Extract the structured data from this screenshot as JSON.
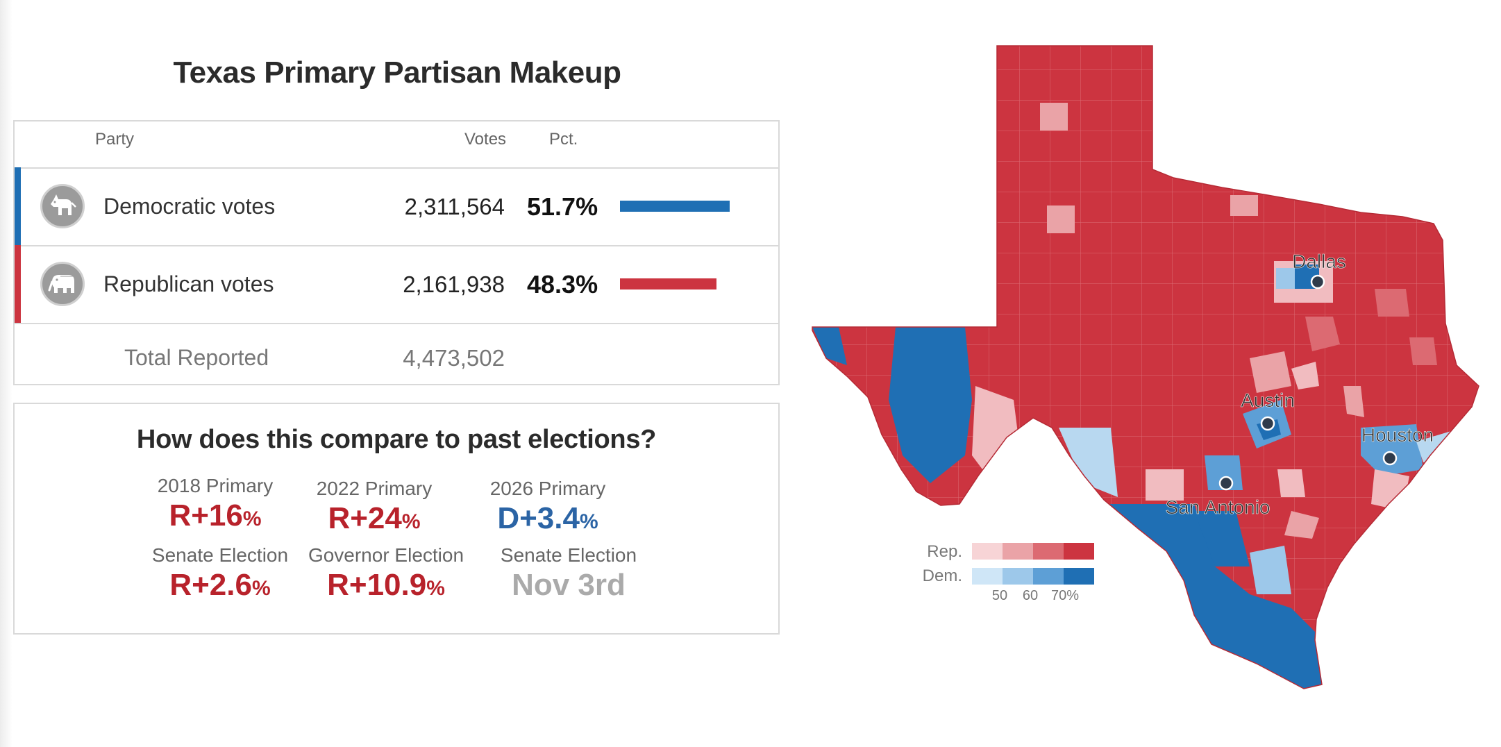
{
  "title": "Texas Primary Partisan Makeup",
  "table": {
    "headers": {
      "party": "Party",
      "votes": "Votes",
      "pct": "Pct."
    },
    "rows": [
      {
        "name": "Democratic votes",
        "votes": "2,311,564",
        "pct": "51.7%",
        "share": 0.517,
        "color": "#1f6fb4",
        "icon": "donkey-icon"
      },
      {
        "name": "Republican votes",
        "votes": "2,161,938",
        "pct": "48.3%",
        "share": 0.483,
        "color": "#cc3440",
        "icon": "elephant-icon"
      }
    ],
    "total": {
      "label": "Total Reported",
      "votes": "4,473,502"
    }
  },
  "compare": {
    "title": "How does this compare to past elections?",
    "items": [
      {
        "label": "2018 Primary",
        "value": "R+16",
        "unit": "%",
        "color": "#b8222b"
      },
      {
        "label": "2022 Primary",
        "value": "R+24",
        "unit": "%",
        "color": "#b8222b"
      },
      {
        "label": "2026 Primary",
        "value": "D+3.4",
        "unit": "%",
        "color": "#2b64a5"
      },
      {
        "label": "Senate Election",
        "value": "R+2.6",
        "unit": "%",
        "color": "#b8222b"
      },
      {
        "label": "Governor Election",
        "value": "R+10.9",
        "unit": "%",
        "color": "#b8222b"
      },
      {
        "label": "Senate Election",
        "value": "Nov 3rd",
        "unit": "",
        "color": "#aaaaaa"
      }
    ]
  },
  "map": {
    "cities": [
      "Dallas",
      "Austin",
      "Houston",
      "San Antonio"
    ],
    "legend": {
      "rep_label": "Rep.",
      "dem_label": "Dem.",
      "ticks": [
        "50",
        "60",
        "70%"
      ],
      "rep_colors": [
        "#f7d4d6",
        "#eaa3a7",
        "#dc6a72",
        "#cc3440"
      ],
      "dem_colors": [
        "#cfe6f7",
        "#9dc8ea",
        "#5d9fd6",
        "#1f6fb4"
      ]
    },
    "colors": {
      "rep_solid": "#cc3440",
      "dem_solid": "#1f6fb4"
    }
  }
}
